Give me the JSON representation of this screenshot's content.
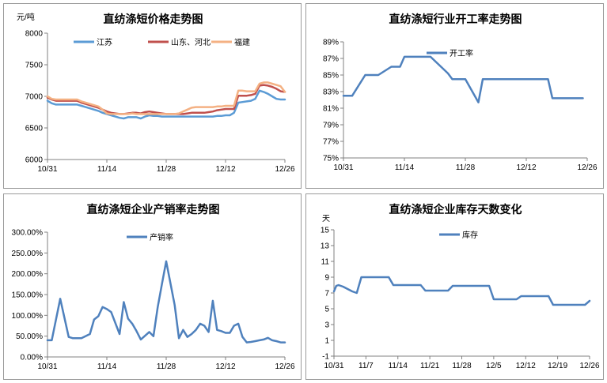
{
  "charts": [
    {
      "type": "line",
      "title": "直纺涤短价格走势图",
      "ylabel": "元/吨",
      "ylim": [
        6000,
        8000
      ],
      "yticks": [
        6000,
        6500,
        7000,
        7500,
        8000
      ],
      "ytick_labels": [
        "6000",
        "6500",
        "7000",
        "7500",
        "8000"
      ],
      "xlim": [
        0,
        56
      ],
      "xticks": [
        0,
        14,
        28,
        42,
        56
      ],
      "xtick_labels": [
        "10/31",
        "11/14",
        "11/28",
        "12/12",
        "12/26"
      ],
      "legend_position": "top",
      "series": [
        {
          "name": "江苏",
          "color": "#5b9bd5",
          "x": [
            0,
            1,
            2,
            4,
            6,
            7,
            8,
            9,
            10,
            11,
            12,
            13,
            14,
            15,
            16,
            17,
            18,
            19,
            20,
            21,
            22,
            23,
            24,
            25,
            26,
            27,
            28,
            29,
            30,
            31,
            32,
            33,
            34,
            35,
            36,
            37,
            38,
            39,
            40,
            41,
            42,
            43,
            44,
            45,
            46,
            47,
            48,
            49,
            50,
            51,
            52,
            53,
            54,
            55,
            56
          ],
          "y": [
            6930,
            6890,
            6870,
            6870,
            6870,
            6870,
            6850,
            6830,
            6810,
            6790,
            6770,
            6740,
            6720,
            6700,
            6680,
            6660,
            6650,
            6670,
            6670,
            6670,
            6650,
            6680,
            6700,
            6690,
            6690,
            6680,
            6680,
            6680,
            6680,
            6680,
            6680,
            6680,
            6680,
            6680,
            6680,
            6680,
            6680,
            6680,
            6690,
            6690,
            6700,
            6700,
            6740,
            6900,
            6910,
            6920,
            6930,
            6960,
            7090,
            7070,
            7040,
            7000,
            6960,
            6950,
            6950
          ]
        },
        {
          "name": "山东、河北",
          "color": "#c0504d",
          "x": [
            0,
            1,
            2,
            4,
            6,
            7,
            8,
            9,
            10,
            11,
            12,
            13,
            14,
            15,
            16,
            17,
            18,
            19,
            20,
            21,
            22,
            23,
            24,
            25,
            26,
            27,
            28,
            29,
            30,
            31,
            32,
            33,
            34,
            35,
            36,
            37,
            38,
            39,
            40,
            41,
            42,
            43,
            44,
            45,
            46,
            47,
            48,
            49,
            50,
            51,
            52,
            53,
            54,
            55,
            56
          ],
          "y": [
            6980,
            6950,
            6930,
            6930,
            6930,
            6930,
            6900,
            6880,
            6860,
            6840,
            6820,
            6790,
            6760,
            6740,
            6730,
            6720,
            6720,
            6730,
            6740,
            6740,
            6730,
            6750,
            6760,
            6750,
            6740,
            6730,
            6720,
            6720,
            6720,
            6720,
            6720,
            6730,
            6740,
            6740,
            6740,
            6740,
            6750,
            6760,
            6780,
            6790,
            6800,
            6800,
            6800,
            7010,
            7010,
            7010,
            7020,
            7040,
            7170,
            7180,
            7170,
            7150,
            7120,
            7080,
            7070
          ]
        },
        {
          "name": "福建",
          "color": "#f4b183",
          "x": [
            0,
            1,
            2,
            4,
            6,
            7,
            8,
            9,
            10,
            11,
            12,
            13,
            14,
            15,
            16,
            17,
            18,
            19,
            20,
            21,
            22,
            23,
            24,
            25,
            26,
            27,
            28,
            29,
            30,
            31,
            32,
            33,
            34,
            35,
            36,
            37,
            38,
            39,
            40,
            41,
            42,
            43,
            44,
            45,
            46,
            47,
            48,
            49,
            50,
            51,
            52,
            53,
            54,
            55,
            56
          ],
          "y": [
            7000,
            6960,
            6950,
            6950,
            6950,
            6950,
            6920,
            6900,
            6880,
            6860,
            6840,
            6790,
            6730,
            6720,
            6720,
            6720,
            6720,
            6720,
            6730,
            6720,
            6720,
            6720,
            6720,
            6720,
            6720,
            6720,
            6720,
            6720,
            6720,
            6730,
            6760,
            6790,
            6820,
            6830,
            6830,
            6830,
            6830,
            6830,
            6840,
            6840,
            6850,
            6850,
            6850,
            7090,
            7090,
            7080,
            7080,
            7080,
            7200,
            7220,
            7220,
            7200,
            7180,
            7160,
            7070
          ]
        }
      ]
    },
    {
      "type": "line",
      "title": "直纺涤短行业开工率走势图",
      "ylim": [
        75,
        89
      ],
      "yticks": [
        75,
        77,
        79,
        81,
        83,
        85,
        87,
        89
      ],
      "ytick_labels": [
        "75%",
        "77%",
        "79%",
        "81%",
        "83%",
        "85%",
        "87%",
        "89%"
      ],
      "xlim": [
        0,
        56
      ],
      "xticks": [
        0,
        14,
        28,
        42,
        56
      ],
      "xtick_labels": [
        "10/31",
        "11/14",
        "11/28",
        "12/12",
        "12/26"
      ],
      "legend_position": "top",
      "series": [
        {
          "name": "开工率",
          "color": "#4f81bd",
          "x": [
            0,
            2,
            5,
            8,
            11,
            13,
            14,
            16,
            20,
            22,
            24,
            25,
            28,
            31,
            32,
            34,
            42,
            47,
            48,
            51,
            55
          ],
          "y": [
            82.5,
            82.5,
            85,
            85,
            86,
            86,
            87.2,
            87.2,
            87.2,
            86.2,
            85.2,
            84.5,
            84.5,
            81.7,
            84.5,
            84.5,
            84.5,
            84.5,
            82.2,
            82.2,
            82.2
          ]
        }
      ]
    },
    {
      "type": "line",
      "title": "直纺涤短企业产销率走势图",
      "ylim": [
        0,
        300
      ],
      "yticks": [
        0,
        50,
        100,
        150,
        200,
        250,
        300
      ],
      "ytick_labels": [
        "0.00%",
        "50.00%",
        "100.00%",
        "150.00%",
        "200.00%",
        "250.00%",
        "300.00%"
      ],
      "xlim": [
        0,
        56
      ],
      "xticks": [
        0,
        14,
        28,
        42,
        56
      ],
      "xtick_labels": [
        "10/31",
        "11/14",
        "11/28",
        "12/12",
        "12/26"
      ],
      "legend_position": "top",
      "series": [
        {
          "name": "产销率",
          "color": "#4f81bd",
          "x": [
            0,
            1,
            3,
            5,
            6,
            7,
            8,
            10,
            11,
            12,
            13,
            14,
            15,
            17,
            18,
            19,
            20,
            21,
            22,
            24,
            25,
            26,
            27,
            28,
            30,
            31,
            32,
            33,
            34,
            35,
            36,
            37,
            38,
            39,
            40,
            41,
            42,
            43,
            44,
            45,
            46,
            47,
            48,
            49,
            50,
            51,
            52,
            53,
            54,
            55,
            56
          ],
          "y": [
            40,
            40,
            140,
            48,
            45,
            45,
            45,
            55,
            90,
            98,
            120,
            115,
            108,
            55,
            132,
            92,
            80,
            62,
            42,
            60,
            50,
            120,
            175,
            230,
            125,
            45,
            65,
            48,
            55,
            65,
            80,
            75,
            60,
            135,
            65,
            62,
            58,
            58,
            75,
            80,
            48,
            35,
            36,
            38,
            40,
            42,
            46,
            40,
            38,
            35,
            35
          ]
        }
      ]
    },
    {
      "type": "line",
      "title": "直纺涤短企业库存天数变化",
      "ylabel": "天",
      "ylim": [
        -1,
        15
      ],
      "yticks": [
        -1,
        1,
        3,
        5,
        7,
        9,
        11,
        13,
        15
      ],
      "ytick_labels": [
        "-1",
        "1",
        "3",
        "5",
        "7",
        "9",
        "11",
        "13",
        "15"
      ],
      "xlim": [
        0,
        56
      ],
      "xticks": [
        0,
        7,
        14,
        21,
        28,
        35,
        42,
        49,
        56
      ],
      "xtick_labels": [
        "10/31",
        "11/7",
        "11/14",
        "11/21",
        "11/28",
        "12/5",
        "12/12",
        "12/19",
        "12/26"
      ],
      "legend_position": "top",
      "series": [
        {
          "name": "库存",
          "color": "#4f81bd",
          "x": [
            0,
            0.5,
            1,
            2,
            4,
            5,
            6,
            12,
            13,
            19,
            20,
            25,
            26,
            34,
            35,
            40,
            41,
            47,
            48,
            55,
            56
          ],
          "y": [
            7.2,
            7.9,
            8,
            7.8,
            7.2,
            7,
            9,
            9,
            8,
            8,
            7.3,
            7.3,
            7.9,
            7.9,
            6.2,
            6.2,
            6.6,
            6.6,
            5.5,
            5.5,
            6
          ]
        }
      ]
    }
  ]
}
